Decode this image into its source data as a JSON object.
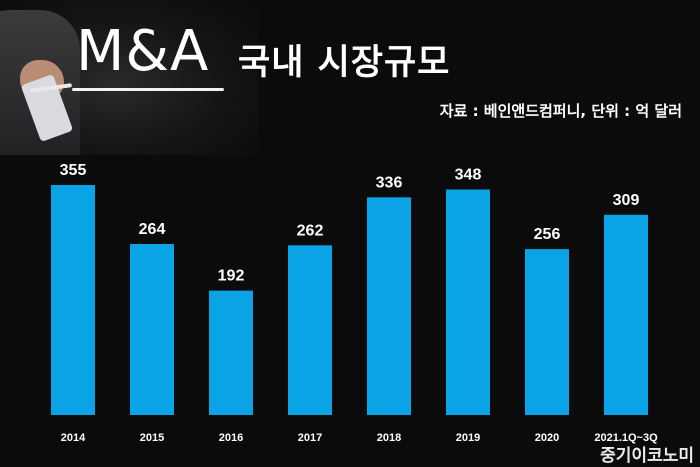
{
  "header": {
    "title_main": "M&A",
    "title_sub": "국내 시장규모",
    "source": "자료 : 베인앤드컴퍼니, 단위 : 억 달러"
  },
  "watermark": "중기이코노미",
  "colors": {
    "bar": "#0aa3e6",
    "background": "#0b0b0b",
    "text": "#ffffff"
  },
  "chart_data": {
    "type": "bar",
    "categories": [
      "2014",
      "2015",
      "2016",
      "2017",
      "2018",
      "2019",
      "2020",
      "2021.1Q~3Q"
    ],
    "values": [
      355,
      264,
      192,
      262,
      336,
      348,
      256,
      309
    ],
    "title": "M&A 국내 시장규모",
    "xlabel": "",
    "ylabel": "",
    "unit": "억 달러",
    "ylim": [
      0,
      400
    ],
    "grid": false,
    "legend": "none"
  }
}
